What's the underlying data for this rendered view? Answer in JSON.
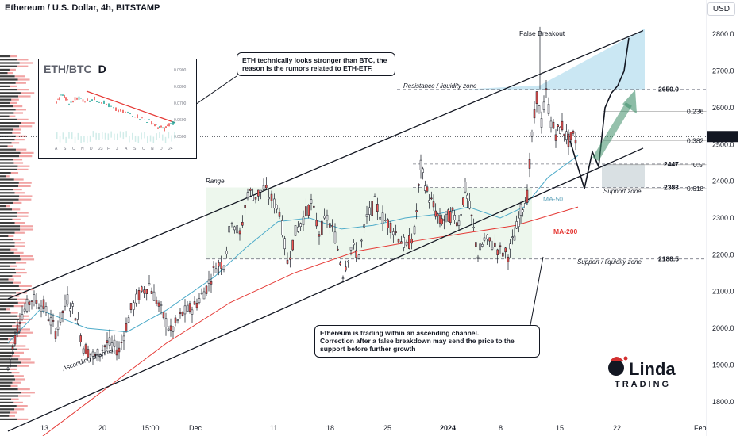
{
  "header": {
    "title": "Ethereum / U.S. Dollar, 4h, BITSTAMP",
    "currency_button": "USD"
  },
  "chart_data": {
    "type": "candlestick",
    "ylim": [
      1750,
      2850
    ],
    "y_ticks": [
      "1800.0",
      "1900.0",
      "2000.0",
      "2100.0",
      "2200.0",
      "2300.0",
      "2400.0",
      "2500.0",
      "2600.0",
      "2700.0",
      "2800.0"
    ],
    "x_ticks": [
      "13",
      "20",
      "15:00",
      "Dec",
      "11",
      "18",
      "25",
      "2024",
      "8",
      "15",
      "22",
      "Feb"
    ],
    "current_price": "2521.6",
    "price_path": [
      [
        0,
        1890
      ],
      [
        15,
        2030
      ],
      [
        30,
        2080
      ],
      [
        45,
        2060
      ],
      [
        60,
        1990
      ],
      [
        75,
        2080
      ],
      [
        85,
        2040
      ],
      [
        95,
        1950
      ],
      [
        110,
        1920
      ],
      [
        125,
        1960
      ],
      [
        140,
        1940
      ],
      [
        155,
        2050
      ],
      [
        165,
        2090
      ],
      [
        178,
        2120
      ],
      [
        190,
        2060
      ],
      [
        205,
        1990
      ],
      [
        220,
        2040
      ],
      [
        235,
        2060
      ],
      [
        250,
        2110
      ],
      [
        262,
        2170
      ],
      [
        272,
        2180
      ],
      [
        282,
        2300
      ],
      [
        292,
        2250
      ],
      [
        302,
        2370
      ],
      [
        312,
        2360
      ],
      [
        322,
        2380
      ],
      [
        332,
        2350
      ],
      [
        342,
        2320
      ],
      [
        352,
        2180
      ],
      [
        362,
        2260
      ],
      [
        372,
        2300
      ],
      [
        382,
        2340
      ],
      [
        392,
        2260
      ],
      [
        402,
        2300
      ],
      [
        412,
        2250
      ],
      [
        422,
        2150
      ],
      [
        432,
        2220
      ],
      [
        442,
        2200
      ],
      [
        452,
        2300
      ],
      [
        462,
        2340
      ],
      [
        472,
        2300
      ],
      [
        482,
        2280
      ],
      [
        492,
        2250
      ],
      [
        502,
        2220
      ],
      [
        512,
        2260
      ],
      [
        520,
        2440
      ],
      [
        528,
        2370
      ],
      [
        536,
        2330
      ],
      [
        544,
        2290
      ],
      [
        552,
        2300
      ],
      [
        560,
        2310
      ],
      [
        568,
        2290
      ],
      [
        576,
        2380
      ],
      [
        584,
        2300
      ],
      [
        592,
        2200
      ],
      [
        600,
        2240
      ],
      [
        610,
        2230
      ],
      [
        620,
        2210
      ],
      [
        630,
        2200
      ],
      [
        638,
        2250
      ],
      [
        646,
        2320
      ],
      [
        654,
        2360
      ],
      [
        660,
        2520
      ],
      [
        666,
        2630
      ],
      [
        672,
        2560
      ],
      [
        678,
        2640
      ],
      [
        684,
        2560
      ],
      [
        690,
        2530
      ],
      [
        698,
        2550
      ],
      [
        706,
        2510
      ],
      [
        712,
        2520
      ],
      [
        718,
        2505
      ]
    ],
    "ma50_path": [
      [
        0,
        1960
      ],
      [
        40,
        2050
      ],
      [
        100,
        2000
      ],
      [
        150,
        1990
      ],
      [
        200,
        2050
      ],
      [
        260,
        2140
      ],
      [
        300,
        2220
      ],
      [
        340,
        2290
      ],
      [
        380,
        2300
      ],
      [
        420,
        2270
      ],
      [
        460,
        2280
      ],
      [
        500,
        2300
      ],
      [
        540,
        2310
      ],
      [
        580,
        2330
      ],
      [
        620,
        2300
      ],
      [
        650,
        2330
      ],
      [
        680,
        2410
      ],
      [
        718,
        2470
      ]
    ],
    "ma200_path": [
      [
        40,
        1700
      ],
      [
        120,
        1830
      ],
      [
        200,
        1960
      ],
      [
        280,
        2070
      ],
      [
        360,
        2150
      ],
      [
        440,
        2210
      ],
      [
        520,
        2240
      ],
      [
        580,
        2260
      ],
      [
        640,
        2280
      ],
      [
        718,
        2330
      ]
    ],
    "channel_upper": [
      [
        0,
        2080
      ],
      [
        810,
        2810
      ]
    ],
    "channel_lower": [
      [
        0,
        1720
      ],
      [
        810,
        2490
      ]
    ],
    "projection_black": [
      [
        708,
        2510
      ],
      [
        726,
        2380
      ],
      [
        736,
        2480
      ],
      [
        744,
        2440
      ],
      [
        752,
        2600
      ],
      [
        760,
        2640
      ],
      [
        768,
        2660
      ],
      [
        776,
        2700
      ],
      [
        782,
        2790
      ]
    ],
    "projection_up_arrow": [
      [
        740,
        2460
      ],
      [
        782,
        2610
      ]
    ],
    "levels": [
      {
        "value": "2650.0",
        "price": 2650,
        "label": "Resistance / liquidity zone"
      },
      {
        "value": "2447",
        "price": 2447,
        "label": ""
      },
      {
        "value": "2383",
        "price": 2383,
        "label": "Support zone"
      },
      {
        "value": "2188.5",
        "price": 2188.5,
        "label": "Support / liquidity zone"
      }
    ],
    "fib_levels": [
      {
        "label": "0.236",
        "price": 2590
      },
      {
        "label": "0.382",
        "price": 2510
      },
      {
        "label": "0.5",
        "price": 2445
      },
      {
        "label": "0.618",
        "price": 2380
      }
    ],
    "annotations": {
      "false_breakout": "False Breakout",
      "range": "Range",
      "ma50": "MA-50",
      "ma200": "MA-200",
      "ascending_channel": "Ascending channel",
      "resistance_zone": "Resistance / liquidity zone",
      "support_zone": "Support zone",
      "support_liquidity": "Support / liquidity zone"
    },
    "colors": {
      "up": "#26a69a",
      "down": "#ef5350",
      "candle": "#131722",
      "ma50": "#4dabc9",
      "ma200": "#e53935",
      "channel": "#131722",
      "resistance_fill": "#9fd4ea",
      "range_fill": "#e8f5e9",
      "support_fill": "#cfd8dc",
      "arrow_green": "#3f8f6a"
    }
  },
  "callouts": {
    "eth_btc": "ETH technically looks stronger than BTC, the reason is the rumors related to ETH-ETF.",
    "channel_note": "Ethereum is trading within an ascending channel.\nCorrection after a false breakdown may send the price to the support before further growth"
  },
  "inset": {
    "title": "ETH/BTC",
    "timeframe": "D",
    "y_ticks": [
      "0.0900",
      "0.0800",
      "0.0700",
      "0.0600",
      "0.0500"
    ],
    "x_ticks": [
      "A",
      "S",
      "O",
      "N",
      "D",
      "23",
      "F",
      "J",
      "A",
      "S",
      "O",
      "N",
      "D",
      "24"
    ]
  },
  "logo": {
    "name": "Linda",
    "subtitle": "TRADING"
  }
}
